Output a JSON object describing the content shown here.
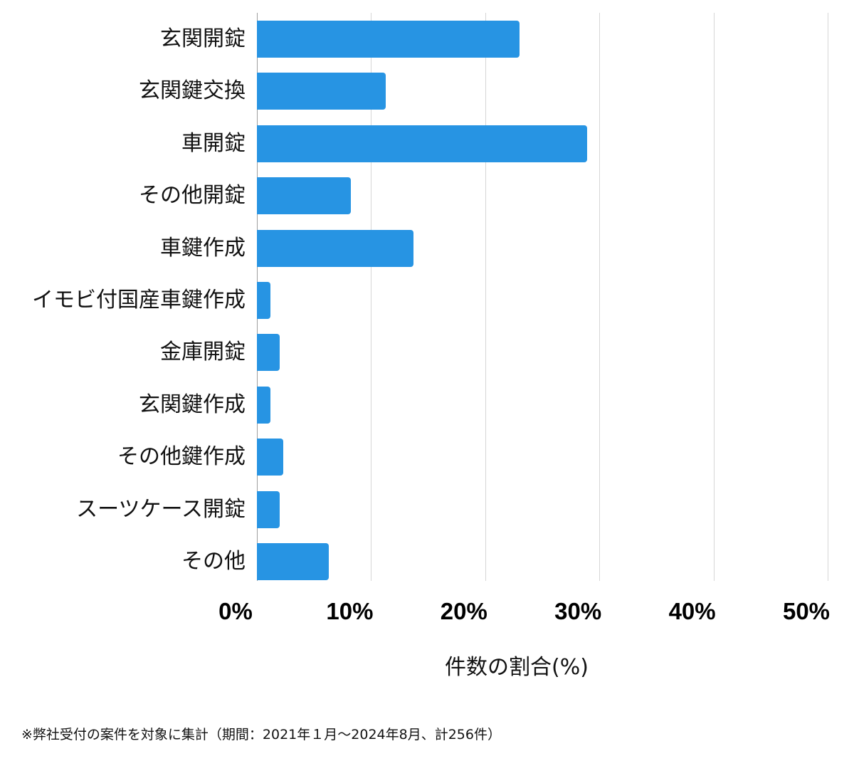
{
  "chart_data": {
    "type": "bar",
    "orientation": "horizontal",
    "title": "",
    "categories": [
      "玄関開錠",
      "玄関鍵交換",
      "車開錠",
      "その他開錠",
      "車鍵作成",
      "イモビ付国産車鍵作成",
      "金庫開錠",
      "玄関鍵作成",
      "その他鍵作成",
      "スーツケース開錠",
      "その他"
    ],
    "values": [
      23.0,
      11.3,
      28.9,
      8.2,
      13.7,
      1.2,
      2.0,
      1.2,
      2.3,
      2.0,
      6.3
    ],
    "xlabel": "件数の割合(%)",
    "ylabel": "",
    "xlim": [
      0,
      50
    ],
    "xticks": [
      "0%",
      "10%",
      "20%",
      "30%",
      "40%",
      "50%"
    ],
    "grid": true,
    "bar_color": "#2794e3",
    "legend": null,
    "footnote": "※弊社受付の案件を対象に集計（期間：2021年１月〜2024年8月、計256件）"
  }
}
